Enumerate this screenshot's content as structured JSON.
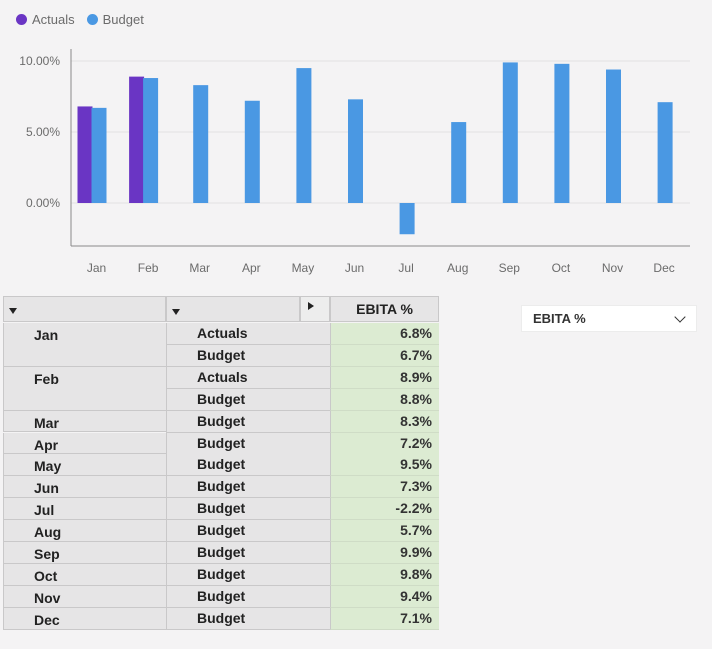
{
  "legend": [
    {
      "label": "Actuals",
      "color": "#6a35c4"
    },
    {
      "label": "Budget",
      "color": "#4a98e3"
    }
  ],
  "chart_data": {
    "type": "bar",
    "categories": [
      "Jan",
      "Feb",
      "Mar",
      "Apr",
      "May",
      "Jun",
      "Jul",
      "Aug",
      "Sep",
      "Oct",
      "Nov",
      "Dec"
    ],
    "series": [
      {
        "name": "Actuals",
        "color": "#6a35c4",
        "values": [
          6.8,
          8.9,
          null,
          null,
          null,
          null,
          null,
          null,
          null,
          null,
          null,
          null
        ]
      },
      {
        "name": "Budget",
        "color": "#4a98e3",
        "values": [
          6.7,
          8.8,
          8.3,
          7.2,
          9.5,
          7.3,
          -2.2,
          5.7,
          9.9,
          9.8,
          9.4,
          7.1
        ]
      }
    ],
    "yticks": [
      "10.00%",
      "5.00%",
      "0.00%"
    ],
    "ytick_values": [
      10,
      5,
      0
    ],
    "ylim": [
      -3,
      10.5
    ],
    "grid": true
  },
  "table": {
    "header_measure": "EBITA %",
    "rows": [
      {
        "month": "Jan",
        "scenario": "Actuals",
        "value": "6.8%"
      },
      {
        "month": "",
        "scenario": "Budget",
        "value": "6.7%"
      },
      {
        "month": "Feb",
        "scenario": "Actuals",
        "value": "8.9%"
      },
      {
        "month": "",
        "scenario": "Budget",
        "value": "8.8%"
      },
      {
        "month": "Mar",
        "scenario": "Budget",
        "value": "8.3%"
      },
      {
        "month": "Apr",
        "scenario": "Budget",
        "value": "7.2%"
      },
      {
        "month": "May",
        "scenario": "Budget",
        "value": "9.5%"
      },
      {
        "month": "Jun",
        "scenario": "Budget",
        "value": "7.3%"
      },
      {
        "month": "Jul",
        "scenario": "Budget",
        "value": "-2.2%"
      },
      {
        "month": "Aug",
        "scenario": "Budget",
        "value": "5.7%"
      },
      {
        "month": "Sep",
        "scenario": "Budget",
        "value": "9.9%"
      },
      {
        "month": "Oct",
        "scenario": "Budget",
        "value": "9.8%"
      },
      {
        "month": "Nov",
        "scenario": "Budget",
        "value": "9.4%"
      },
      {
        "month": "Dec",
        "scenario": "Budget",
        "value": "7.1%"
      }
    ]
  },
  "measure_select": {
    "value": "EBITA %"
  }
}
